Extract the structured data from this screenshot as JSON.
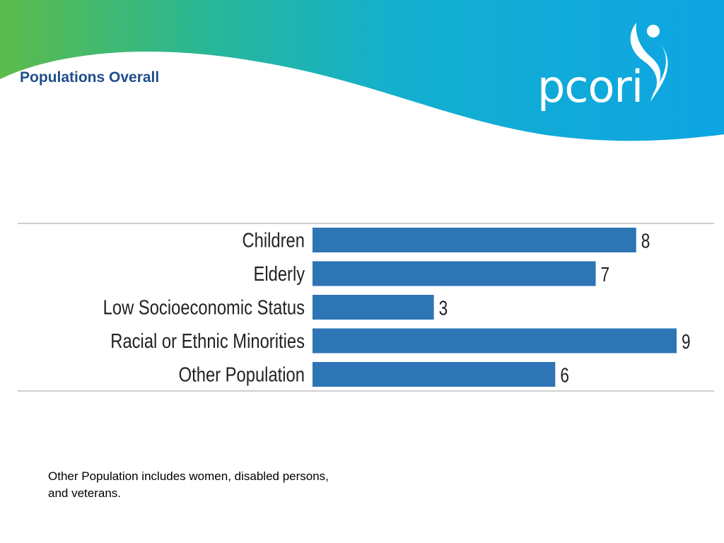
{
  "slide": {
    "title": "Populations Overall",
    "footnote": "Other Population includes women, disabled persons, and veterans."
  },
  "logo": {
    "text": "pcori",
    "icon": "pcori-figure-icon"
  },
  "colors": {
    "title": "#1f4e8c",
    "bar": "#2e75b6",
    "wave_green": "#5cbb4a",
    "wave_teal": "#1aaebb",
    "wave_blue": "#0ea5e3",
    "rule": "#bfbfbf"
  },
  "chart_data": {
    "type": "bar",
    "orientation": "horizontal",
    "categories": [
      "Children",
      "Elderly",
      "Low Socioeconomic Status",
      "Racial or Ethnic Minorities",
      "Other Population"
    ],
    "values": [
      8,
      7,
      3,
      9,
      6
    ],
    "title": "",
    "xlabel": "",
    "ylabel": "",
    "xlim": [
      0,
      9
    ],
    "grid": false,
    "legend": "none",
    "data_labels": true
  }
}
